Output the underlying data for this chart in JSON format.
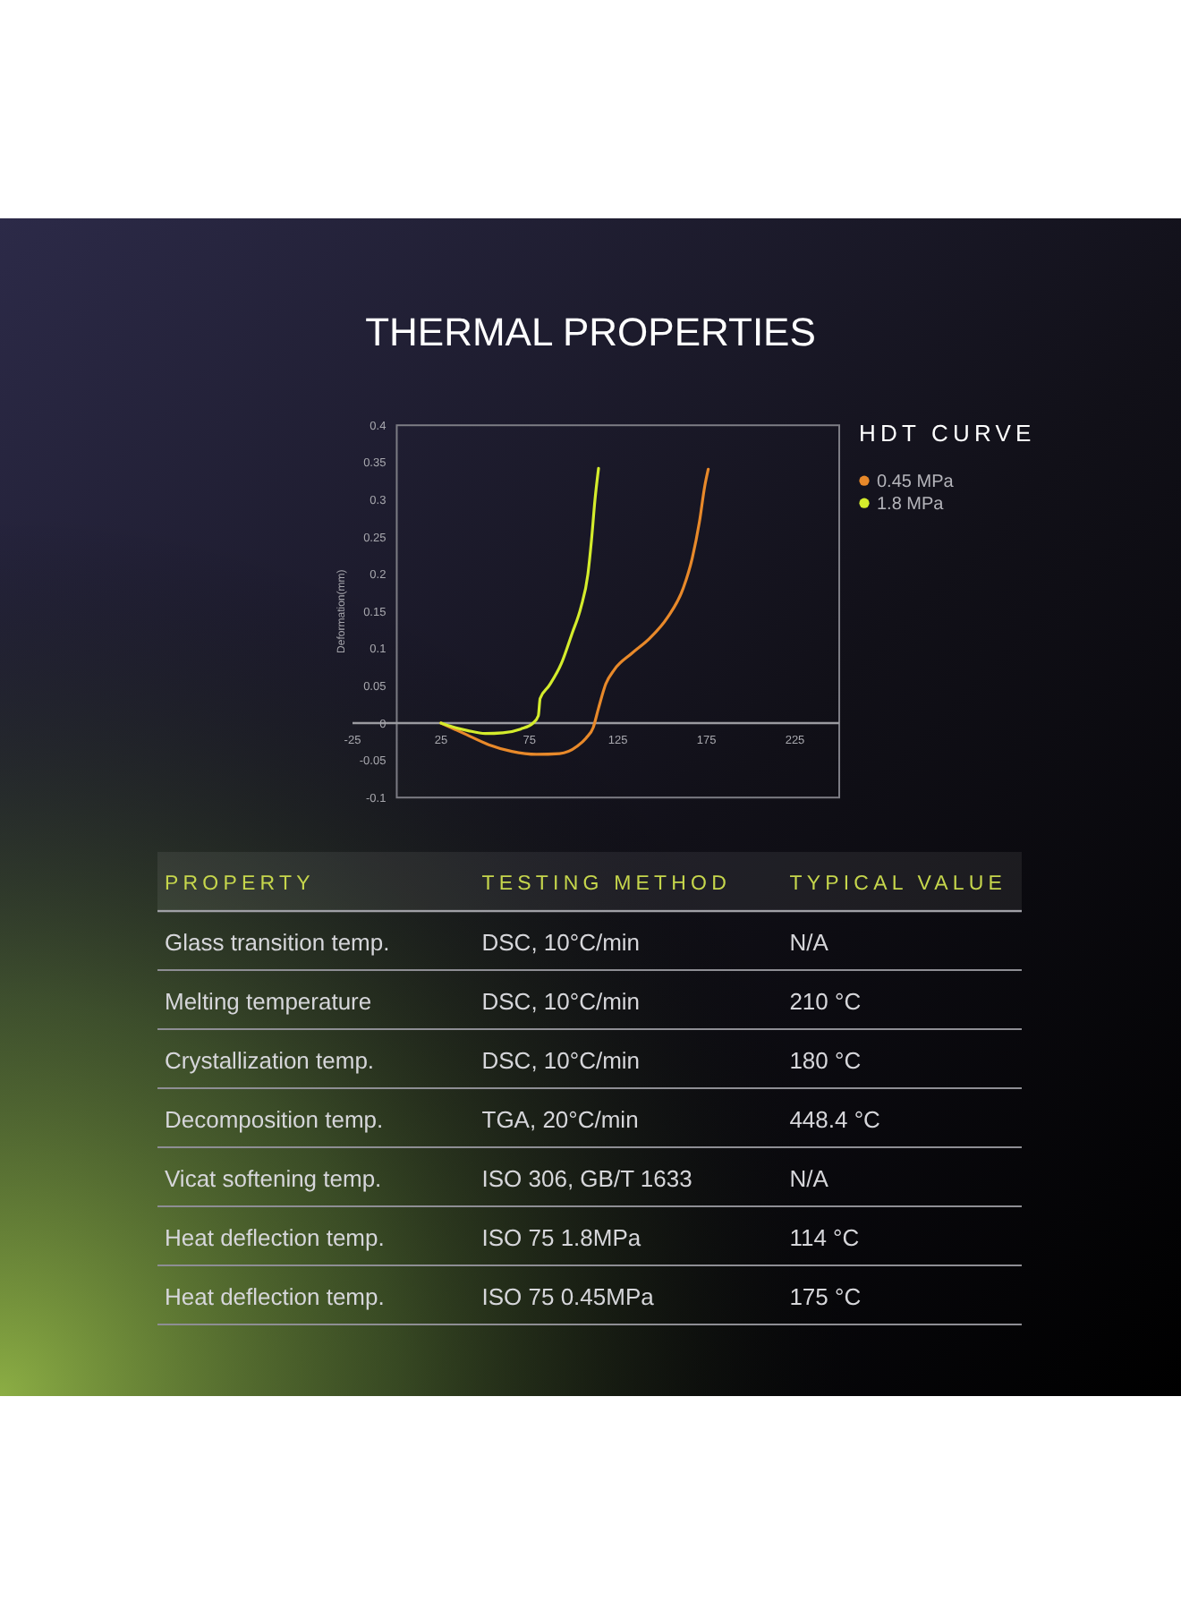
{
  "chart_data": [
    {
      "type": "line",
      "title": "THERMAL PROPERTIES",
      "ylabel": "Deformation(mm)",
      "legend_title": "HDT CURVE",
      "legend": "right",
      "xlim": [
        -25,
        250
      ],
      "ylim": [
        -0.1,
        0.4
      ],
      "xticks": [
        -25,
        25,
        75,
        125,
        175,
        225
      ],
      "yticks": [
        -0.1,
        -0.05,
        0,
        0.05,
        0.1,
        0.15,
        0.2,
        0.25,
        0.3,
        0.35,
        0.4
      ],
      "series": [
        {
          "name": "0.45 MPa",
          "color": "#e8892a",
          "x": [
            25,
            38,
            52,
            65,
            79,
            92,
            102,
            107,
            111,
            114,
            118,
            123,
            133,
            143,
            153,
            162,
            167,
            171,
            174,
            176
          ],
          "values": [
            0,
            -0.014,
            -0.029,
            -0.038,
            -0.042,
            -0.041,
            -0.031,
            -0.02,
            -0.006,
            0.02,
            0.052,
            0.072,
            0.094,
            0.114,
            0.142,
            0.182,
            0.222,
            0.27,
            0.318,
            0.341
          ]
        },
        {
          "name": "1.8 MPa",
          "color": "#d4ec2c",
          "x": [
            25,
            30,
            40,
            50,
            60,
            70,
            77,
            80,
            81,
            86,
            93,
            99,
            104,
            108,
            110,
            112,
            114
          ],
          "values": [
            0,
            -0.004,
            -0.01,
            -0.014,
            -0.013,
            -0.008,
            0,
            0.01,
            0.033,
            0.05,
            0.08,
            0.12,
            0.155,
            0.2,
            0.245,
            0.3,
            0.342
          ]
        }
      ]
    },
    {
      "type": "other",
      "categories": [
        "PROPERTY",
        "TESTING METHOD",
        "TYPICAL VALUE"
      ],
      "cell_labels": [
        [
          "Glass transition temp.",
          "DSC, 10°C/min",
          "N/A"
        ],
        [
          "Melting temperature",
          "DSC, 10°C/min",
          "210 °C"
        ],
        [
          "Crystallization temp.",
          "DSC, 10°C/min",
          "180 °C"
        ],
        [
          "Decomposition temp.",
          "TGA, 20°C/min",
          "448.4 °C"
        ],
        [
          "Vicat softening temp.",
          "ISO 306, GB/T 1633",
          "N/A"
        ],
        [
          "Heat deflection temp.",
          "ISO 75 1.8MPa",
          "114 °C"
        ],
        [
          "Heat deflection temp.",
          "ISO 75 0.45MPa",
          "175 °C"
        ]
      ]
    }
  ]
}
